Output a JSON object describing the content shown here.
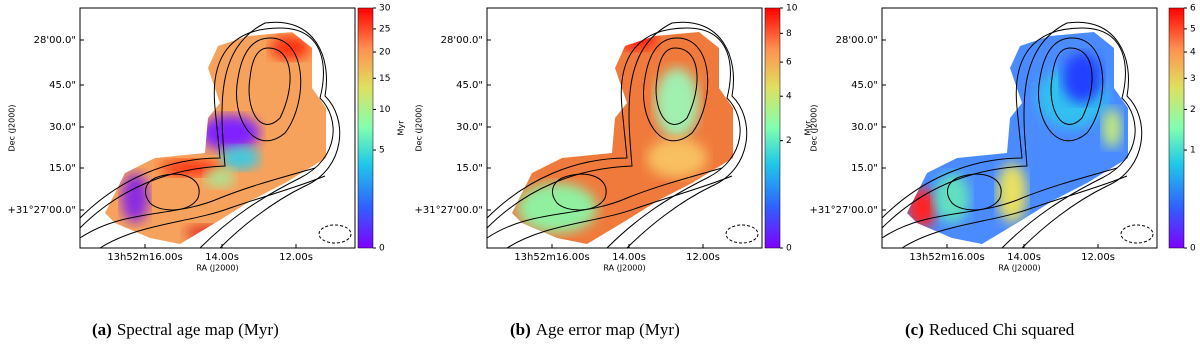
{
  "panels": [
    {
      "ylabel": "Dec (J2000)",
      "xlabel": "RA (J2000)",
      "xticks": [
        "13h52m16.00s",
        "14.00s",
        "12.00s"
      ],
      "yticks": [
        "+31°27'00.0\"",
        "15.0\"",
        "30.0\"",
        "45.0\"",
        "28'00.0\""
      ],
      "colorbar": {
        "label": "Myr",
        "lim": [
          0,
          30
        ],
        "ticks": [
          0,
          5,
          10,
          15,
          20,
          25,
          30
        ],
        "scale": "sqrt"
      },
      "caption": {
        "label": "(a)",
        "text": "Spectral age map (Myr)"
      }
    },
    {
      "ylabel": "Dec (J2000)",
      "xlabel": "RA (J2000)",
      "xticks": [
        "13h52m16.00s",
        "14.00s",
        "12.00s"
      ],
      "yticks": [
        "+31°27'00.0\"",
        "15.0\"",
        "30.0\"",
        "45.0\"",
        "28'00.0\""
      ],
      "colorbar": {
        "label": "Myr",
        "lim": [
          0,
          10
        ],
        "ticks": [
          0,
          2,
          4,
          6,
          8,
          10
        ],
        "scale": "sqrt"
      },
      "caption": {
        "label": "(b)",
        "text": "Age error map (Myr)"
      }
    },
    {
      "ylabel": "Dec (J2000)",
      "xlabel": "RA (J2000)",
      "xticks": [
        "13h52m16.00s",
        "14.00s",
        "12.00s"
      ],
      "yticks": [
        "+31°27'00.0\"",
        "15.0\"",
        "30.0\"",
        "45.0\"",
        "28'00.0\""
      ],
      "colorbar": {
        "lim": [
          0,
          6
        ],
        "ticks": [
          0,
          1,
          2,
          3,
          4,
          5,
          6
        ],
        "scale": "sqrt"
      },
      "caption": {
        "label": "(c)",
        "text": "Reduced Chi squared"
      }
    }
  ]
}
